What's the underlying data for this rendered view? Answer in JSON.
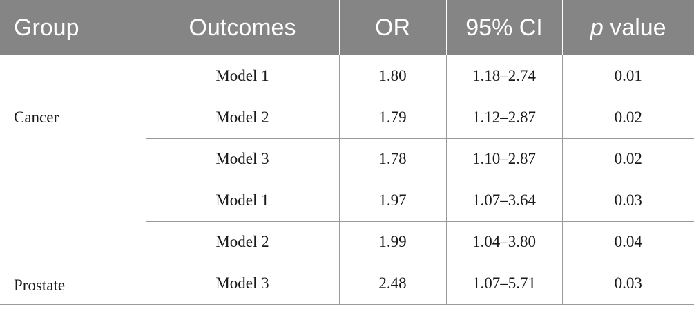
{
  "table": {
    "headers": {
      "group": "Group",
      "outcomes": "Outcomes",
      "or": "OR",
      "ci": "95% CI",
      "p_italic": "p",
      "p_rest": " value"
    },
    "groups": [
      {
        "name": "Cancer",
        "rows": [
          {
            "model": "Model 1",
            "or": "1.80",
            "ci": "1.18–2.74",
            "p": "0.01"
          },
          {
            "model": "Model 2",
            "or": "1.79",
            "ci": "1.12–2.87",
            "p": "0.02"
          },
          {
            "model": "Model 3",
            "or": "1.78",
            "ci": "1.10–2.87",
            "p": "0.02"
          }
        ]
      },
      {
        "name": "Prostate",
        "rows": [
          {
            "model": "Model 1",
            "or": "1.97",
            "ci": "1.07–3.64",
            "p": "0.03"
          },
          {
            "model": "Model 2",
            "or": "1.99",
            "ci": "1.04–3.80",
            "p": "0.04"
          },
          {
            "model": "Model 3",
            "or": "2.48",
            "ci": "1.07–5.71",
            "p": "0.03"
          }
        ]
      }
    ]
  }
}
